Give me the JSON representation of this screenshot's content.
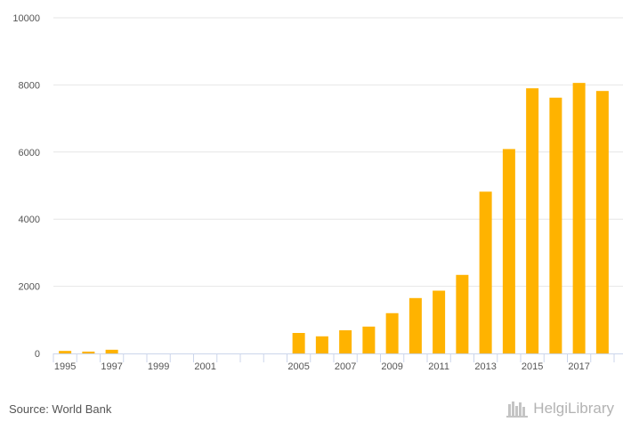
{
  "chart_data": {
    "type": "bar",
    "title": "",
    "xlabel": "",
    "ylabel": "",
    "ylim": [
      0,
      10000
    ],
    "yticks": [
      0,
      2000,
      4000,
      6000,
      8000,
      10000
    ],
    "categories": [
      "1995",
      "1996",
      "1997",
      "1998",
      "1999",
      "2000",
      "2001",
      "2002",
      "2003",
      "2004",
      "2005",
      "2006",
      "2007",
      "2008",
      "2009",
      "2010",
      "2011",
      "2012",
      "2013",
      "2014",
      "2015",
      "2016",
      "2017",
      "2018"
    ],
    "tick_labels": [
      "1995",
      "",
      "1997",
      "",
      "1999",
      "",
      "2001",
      "",
      "",
      "",
      "2005",
      "",
      "2007",
      "",
      "2009",
      "",
      "2011",
      "",
      "2013",
      "",
      "2015",
      "",
      "2017",
      ""
    ],
    "values": [
      75,
      55,
      110,
      0,
      0,
      0,
      0,
      0,
      0,
      0,
      610,
      510,
      690,
      800,
      1200,
      1650,
      1870,
      2340,
      4820,
      6090,
      7900,
      7620,
      8060,
      7820
    ],
    "bar_color": "#FFB300"
  },
  "footer": {
    "source": "Source: World Bank",
    "brand": "HelgiLibrary",
    "brand_color": "#b3b3b3"
  }
}
